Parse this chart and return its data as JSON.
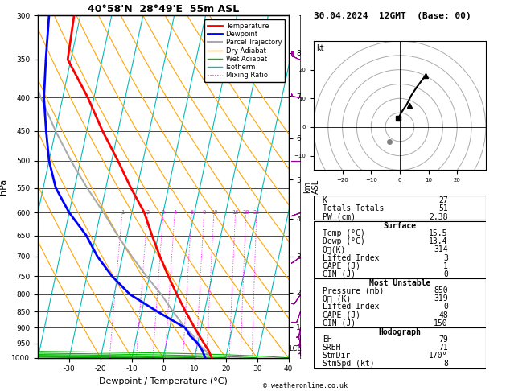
{
  "title_left": "40°58'N  28°49'E  55m ASL",
  "title_right": "30.04.2024  12GMT  (Base: 00)",
  "xlabel": "Dewpoint / Temperature (°C)",
  "pressure_levels": [
    300,
    350,
    400,
    450,
    500,
    550,
    600,
    650,
    700,
    750,
    800,
    850,
    900,
    950,
    1000
  ],
  "temp_xlim": [
    -40,
    40
  ],
  "skew_factor": 45.0,
  "temperature_profile": {
    "pressure": [
      1000,
      975,
      950,
      925,
      900,
      850,
      800,
      750,
      700,
      650,
      600,
      550,
      500,
      450,
      400,
      350,
      300
    ],
    "temp": [
      15.5,
      14,
      12,
      10,
      8,
      4,
      0,
      -4,
      -8,
      -12,
      -16,
      -22,
      -28,
      -35,
      -42,
      -51,
      -52
    ]
  },
  "dewpoint_profile": {
    "pressure": [
      1000,
      975,
      950,
      925,
      900,
      850,
      800,
      750,
      700,
      650,
      600,
      550,
      500,
      450,
      400,
      350,
      300
    ],
    "temp": [
      13.4,
      12,
      10,
      7,
      5,
      -5,
      -15,
      -22,
      -28,
      -33,
      -40,
      -46,
      -50,
      -53,
      -56,
      -58,
      -60
    ]
  },
  "parcel_profile": {
    "pressure": [
      1000,
      975,
      950,
      925,
      900,
      850,
      800,
      750,
      700,
      650,
      600,
      550,
      500,
      450,
      400,
      350,
      300
    ],
    "temp": [
      15.5,
      13,
      10,
      8,
      5,
      0,
      -5,
      -11,
      -17,
      -23,
      -29,
      -36,
      -43,
      -50,
      -57,
      -64,
      -71
    ]
  },
  "lcl_pressure": 970,
  "km_ticks": [
    1,
    2,
    3,
    4,
    5,
    6,
    7,
    8
  ],
  "km_pressures": [
    898,
    795,
    700,
    613,
    534,
    462,
    398,
    342
  ],
  "mixing_ratio_values": [
    1,
    2,
    3,
    4,
    6,
    8,
    10,
    16,
    20,
    25
  ],
  "isotherm_values": [
    -50,
    -40,
    -30,
    -20,
    -10,
    0,
    10,
    20,
    30,
    40,
    50
  ],
  "dry_adiabat_thetas": [
    -20,
    -10,
    0,
    10,
    20,
    30,
    40,
    50,
    60,
    70,
    80,
    90,
    100
  ],
  "wet_adiabat_T0s": [
    -20,
    -10,
    0,
    10,
    20,
    30,
    40
  ],
  "wind_pressures": [
    1000,
    950,
    925,
    900,
    850,
    800,
    700,
    600,
    500,
    400,
    350,
    300
  ],
  "wind_speeds": [
    3,
    5,
    5,
    5,
    8,
    8,
    10,
    12,
    20,
    25,
    28,
    32
  ],
  "wind_dirs": [
    170,
    180,
    185,
    190,
    200,
    215,
    235,
    250,
    270,
    280,
    295,
    310
  ],
  "hodograph_u": [
    -0.5,
    0.5,
    2.5,
    4.0,
    6.0,
    7.5,
    9.0
  ],
  "hodograph_v": [
    3.0,
    5.0,
    8.0,
    11.0,
    14.0,
    16.0,
    18.0
  ],
  "storm_u": 3.5,
  "storm_v": 7.5,
  "hodo_surface_u": -3.5,
  "hodo_surface_v": -5.0,
  "sounding_info": {
    "K": 27,
    "TotTot": 51,
    "PW": 2.38,
    "SurfTemp": 15.5,
    "SurfDewp": 13.4,
    "ThetaE": 314,
    "LiftedIdx": 3,
    "CAPE": 1,
    "CIN": 0,
    "MU_Pressure": 850,
    "MU_ThetaE": 319,
    "MU_LiftedIdx": 0,
    "MU_CAPE": 48,
    "MU_CIN": 150,
    "EH": 79,
    "SREH": 71,
    "StmDir": 170,
    "StmSpd": 8
  },
  "colors": {
    "temperature": "#ff0000",
    "dewpoint": "#0000ff",
    "parcel": "#aaaaaa",
    "dry_adiabat": "#ffa500",
    "wet_adiabat": "#00bb00",
    "isotherm": "#00bbbb",
    "mixing_ratio": "#ff00ff",
    "wind_barb": "#990099"
  },
  "legend_items": [
    {
      "label": "Temperature",
      "color": "#ff0000",
      "lw": 2.0,
      "ls": "solid"
    },
    {
      "label": "Dewpoint",
      "color": "#0000ff",
      "lw": 2.0,
      "ls": "solid"
    },
    {
      "label": "Parcel Trajectory",
      "color": "#aaaaaa",
      "lw": 1.5,
      "ls": "solid"
    },
    {
      "label": "Dry Adiabat",
      "color": "#ffa500",
      "lw": 1.0,
      "ls": "solid"
    },
    {
      "label": "Wet Adiabat",
      "color": "#00bb00",
      "lw": 1.0,
      "ls": "solid"
    },
    {
      "label": "Isotherm",
      "color": "#00bbbb",
      "lw": 1.0,
      "ls": "solid"
    },
    {
      "label": "Mixing Ratio",
      "color": "#ff00ff",
      "lw": 0.8,
      "ls": "dotted"
    }
  ]
}
